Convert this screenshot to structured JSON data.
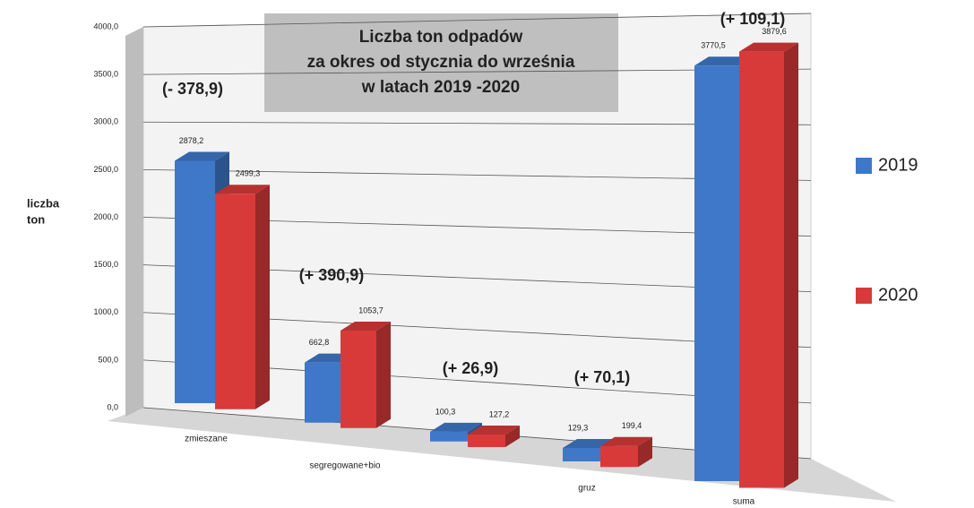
{
  "chart_data": {
    "type": "bar3d",
    "title": [
      "Liczba ton odpadów",
      "za okres od stycznia do września",
      "w latach 2019 -2020"
    ],
    "y_label": [
      "liczba",
      "ton"
    ],
    "categories": [
      "zmieszane",
      "segregowane+bio",
      null,
      "gruz",
      "suma"
    ],
    "series": [
      {
        "name": "2019",
        "color": "#3f78c8",
        "values": [
          2878.2,
          662.8,
          100.3,
          129.3,
          3770.5
        ],
        "value_labels": [
          "2878,2",
          "662,8",
          "100,3",
          "129,3",
          "3770,5"
        ]
      },
      {
        "name": "2020",
        "color": "#d83a3a",
        "values": [
          2499.3,
          1053.7,
          127.2,
          199.4,
          3879.6
        ],
        "value_labels": [
          "2499,3",
          "1053,7",
          "127,2",
          "199,4",
          "3879,6"
        ]
      }
    ],
    "annotations": [
      "(- 378,9)",
      "(+ 390,9)",
      "(+ 26,9)",
      "(+ 70,1)",
      "(+ 109,1)"
    ],
    "ylim": [
      0,
      4000
    ],
    "yticks": [
      {
        "value": 0,
        "label": "0,0"
      },
      {
        "value": 500,
        "label": "500,0"
      },
      {
        "value": 1000,
        "label": "1000,0"
      },
      {
        "value": 1500,
        "label": "1500,0"
      },
      {
        "value": 2000,
        "label": "2000,0"
      },
      {
        "value": 2500,
        "label": "2500,0"
      },
      {
        "value": 3000,
        "label": "3000,0"
      },
      {
        "value": 3500,
        "label": "3500,0"
      },
      {
        "value": 4000,
        "label": "4000,0"
      }
    ],
    "grid": true
  }
}
